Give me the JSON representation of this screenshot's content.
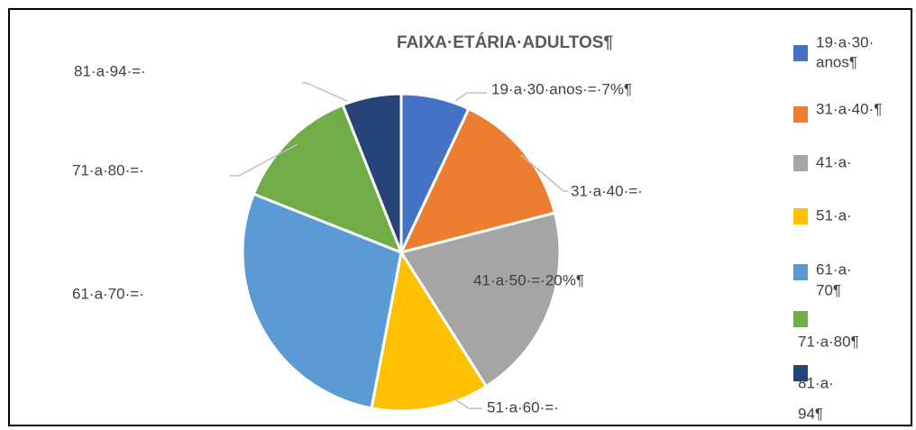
{
  "chart_data": {
    "type": "pie",
    "title": "FAIXA·ETÁRIA·ADULTOS¶",
    "values": [
      7,
      14,
      20,
      12,
      28,
      13,
      6
    ],
    "colors": [
      "#4472c4",
      "#ed7d31",
      "#a5a5a5",
      "#ffc000",
      "#5b9bd5",
      "#70ad47",
      "#264478"
    ],
    "data_labels": [
      "19·a·30·anos·=·7%¶",
      "31·a·40·=·",
      "41·a·50·=·20%¶",
      "51·a·60·=·",
      "61·a·70·=·",
      "71·a·80·=·",
      "81·a·94·=·"
    ],
    "legend": [
      [
        "19·a·30·",
        "anos¶"
      ],
      [
        "31·a·40·¶"
      ],
      [
        "41·a·"
      ],
      [
        "51·a·"
      ],
      [
        "61·a·",
        "70¶"
      ],
      [
        "71·a·80¶"
      ],
      [
        "81·a·",
        "94¶"
      ]
    ]
  }
}
